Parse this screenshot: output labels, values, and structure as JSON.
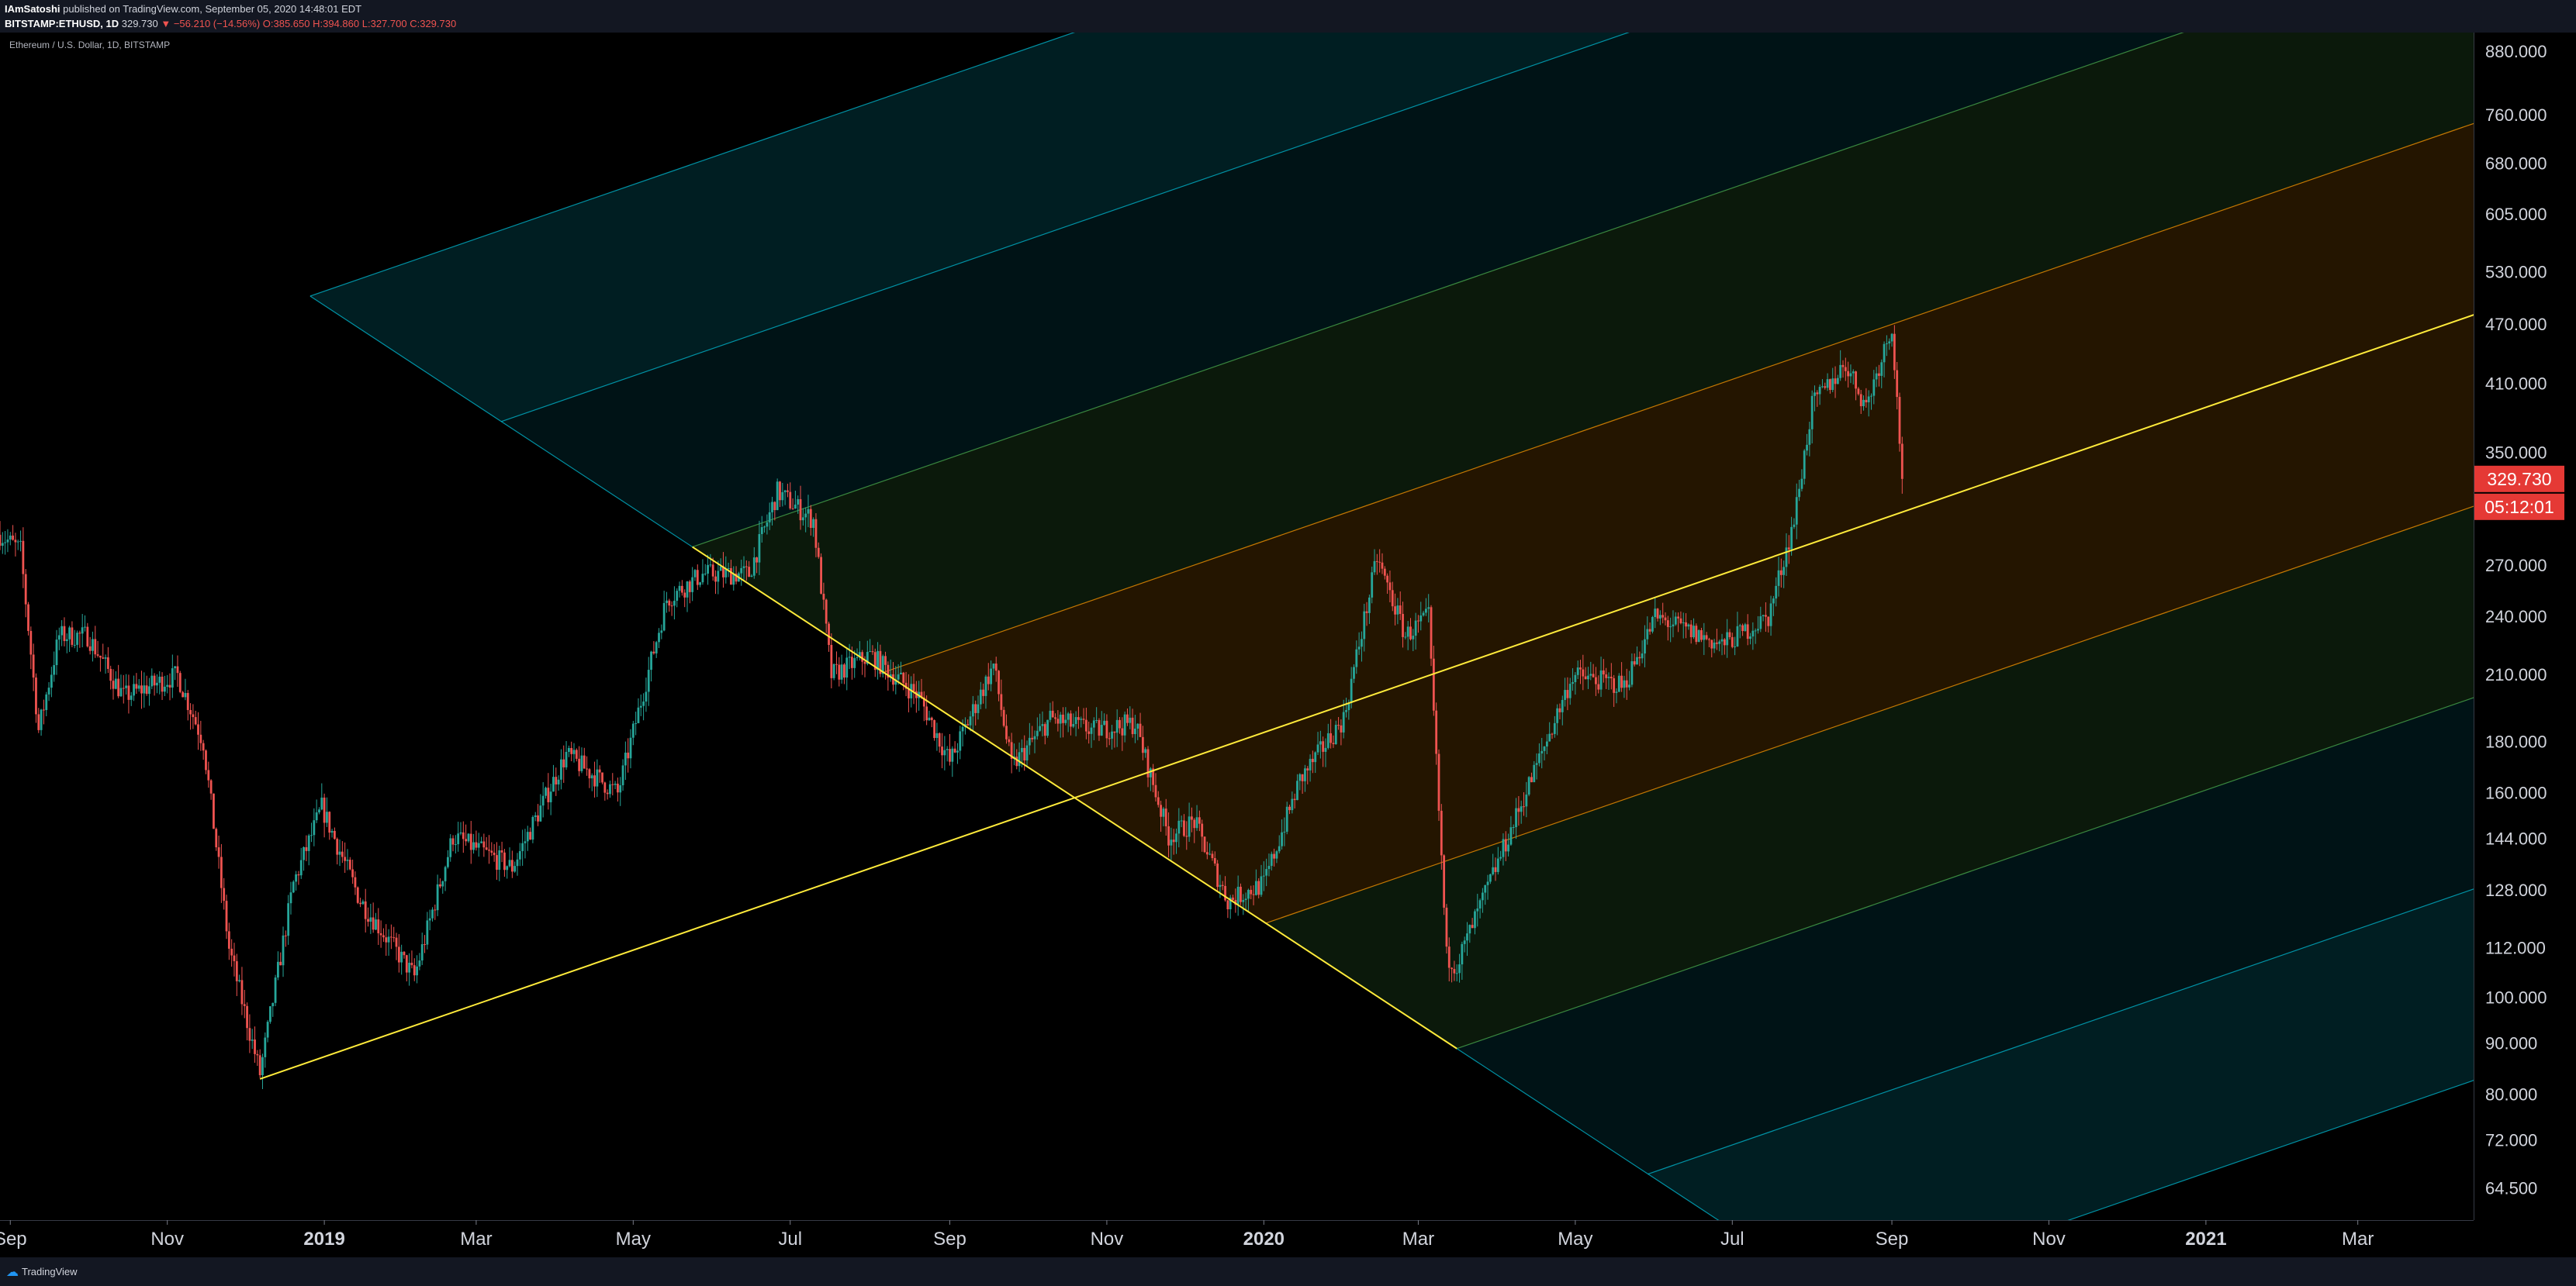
{
  "header": {
    "author": "IAmSatoshi",
    "published": "published on TradingView.com, September 05, 2020 14:48:01 EDT",
    "symbol": "BITSTAMP:ETHUSD, 1D",
    "last": "329.730",
    "change": "▼ −56.210 (−14.56%)",
    "open": "O:385.650",
    "high": "H:394.860",
    "low": "L:327.700",
    "close": "C:329.730"
  },
  "footer": {
    "brand": "TradingView"
  },
  "colors": {
    "up": "#26a69a",
    "down": "#ef5350",
    "median": "#ffeb3b",
    "band_teal": "#00bcd4",
    "band_green": "#4caf50",
    "band_orange": "#ff9800",
    "badge": "#e53935"
  },
  "chart_data": {
    "type": "candlestick",
    "instrument": "Ethereum / U.S. Dollar, 1D, BITSTAMP",
    "y_scale": "log",
    "ylim": [
      60,
      920
    ],
    "y_ticks": [
      880,
      760,
      680,
      605,
      530,
      470,
      410,
      350,
      270,
      240,
      210,
      180,
      160,
      144,
      128,
      112,
      100,
      90,
      80,
      72,
      64.5
    ],
    "y_tick_labels": [
      "880.000",
      "760.000",
      "680.000",
      "605.000",
      "530.000",
      "470.000",
      "410.000",
      "350.000",
      "270.000",
      "240.000",
      "210.000",
      "180.000",
      "160.000",
      "144.000",
      "128.000",
      "112.000",
      "100.000",
      "90.000",
      "80.000",
      "72.000",
      "64.500"
    ],
    "x_range": [
      "2018-08-28",
      "2021-04-15"
    ],
    "x_ticks": [
      {
        "label": "Sep",
        "date": "2018-09-01"
      },
      {
        "label": "Nov",
        "date": "2018-11-01"
      },
      {
        "label": "2019",
        "date": "2019-01-01"
      },
      {
        "label": "Mar",
        "date": "2019-03-01"
      },
      {
        "label": "May",
        "date": "2019-05-01"
      },
      {
        "label": "Jul",
        "date": "2019-07-01"
      },
      {
        "label": "Sep",
        "date": "2019-09-01"
      },
      {
        "label": "Nov",
        "date": "2019-11-01"
      },
      {
        "label": "2020",
        "date": "2020-01-01"
      },
      {
        "label": "Mar",
        "date": "2020-03-01"
      },
      {
        "label": "May",
        "date": "2020-05-01"
      },
      {
        "label": "Jul",
        "date": "2020-07-01"
      },
      {
        "label": "Sep",
        "date": "2020-09-01"
      },
      {
        "label": "Nov",
        "date": "2020-11-01"
      },
      {
        "label": "2021",
        "date": "2021-01-01"
      },
      {
        "label": "Mar",
        "date": "2021-03-01"
      }
    ],
    "price_path": [
      [
        "2018-08-28",
        290
      ],
      [
        "2018-09-05",
        280
      ],
      [
        "2018-09-12",
        185
      ],
      [
        "2018-09-20",
        230
      ],
      [
        "2018-10-01",
        230
      ],
      [
        "2018-10-15",
        200
      ],
      [
        "2018-11-05",
        210
      ],
      [
        "2018-11-15",
        180
      ],
      [
        "2018-11-25",
        112
      ],
      [
        "2018-12-07",
        84
      ],
      [
        "2018-12-20",
        130
      ],
      [
        "2018-12-31",
        155
      ],
      [
        "2019-01-15",
        125
      ],
      [
        "2019-02-05",
        105
      ],
      [
        "2019-02-20",
        145
      ],
      [
        "2019-03-15",
        135
      ],
      [
        "2019-04-05",
        175
      ],
      [
        "2019-04-25",
        160
      ],
      [
        "2019-05-14",
        250
      ],
      [
        "2019-05-28",
        265
      ],
      [
        "2019-06-15",
        265
      ],
      [
        "2019-06-26",
        320
      ],
      [
        "2019-07-10",
        300
      ],
      [
        "2019-07-17",
        210
      ],
      [
        "2019-08-01",
        220
      ],
      [
        "2019-08-20",
        200
      ],
      [
        "2019-09-01",
        172
      ],
      [
        "2019-09-18",
        215
      ],
      [
        "2019-09-25",
        170
      ],
      [
        "2019-10-10",
        190
      ],
      [
        "2019-10-27",
        185
      ],
      [
        "2019-11-12",
        188
      ],
      [
        "2019-11-25",
        145
      ],
      [
        "2019-12-05",
        150
      ],
      [
        "2019-12-18",
        125
      ],
      [
        "2020-01-01",
        130
      ],
      [
        "2020-01-15",
        165
      ],
      [
        "2020-02-01",
        190
      ],
      [
        "2020-02-14",
        275
      ],
      [
        "2020-02-25",
        230
      ],
      [
        "2020-03-05",
        240
      ],
      [
        "2020-03-12",
        110
      ],
      [
        "2020-03-16",
        108
      ],
      [
        "2020-04-05",
        145
      ],
      [
        "2020-04-30",
        210
      ],
      [
        "2020-05-20",
        205
      ],
      [
        "2020-06-01",
        240
      ],
      [
        "2020-06-27",
        225
      ],
      [
        "2020-07-15",
        240
      ],
      [
        "2020-07-25",
        300
      ],
      [
        "2020-08-01",
        390
      ],
      [
        "2020-08-14",
        430
      ],
      [
        "2020-08-22",
        390
      ],
      [
        "2020-09-01",
        470
      ],
      [
        "2020-09-05",
        329.73
      ]
    ],
    "annotations": {
      "last_price": "329.730",
      "countdown": "05:12:01",
      "pitchfork": {
        "type": "schiff-pitchfork",
        "pivot": [
          "2018-12-07",
          83
        ],
        "a": [
          "2019-05-24",
          282
        ],
        "b": [
          "2020-03-16",
          89
        ],
        "levels": [
          0.5,
          1,
          1.5,
          2
        ],
        "level_colors": [
          "#ff9800",
          "#4caf50",
          "#00bcd4",
          "#00bcd4"
        ]
      }
    }
  }
}
